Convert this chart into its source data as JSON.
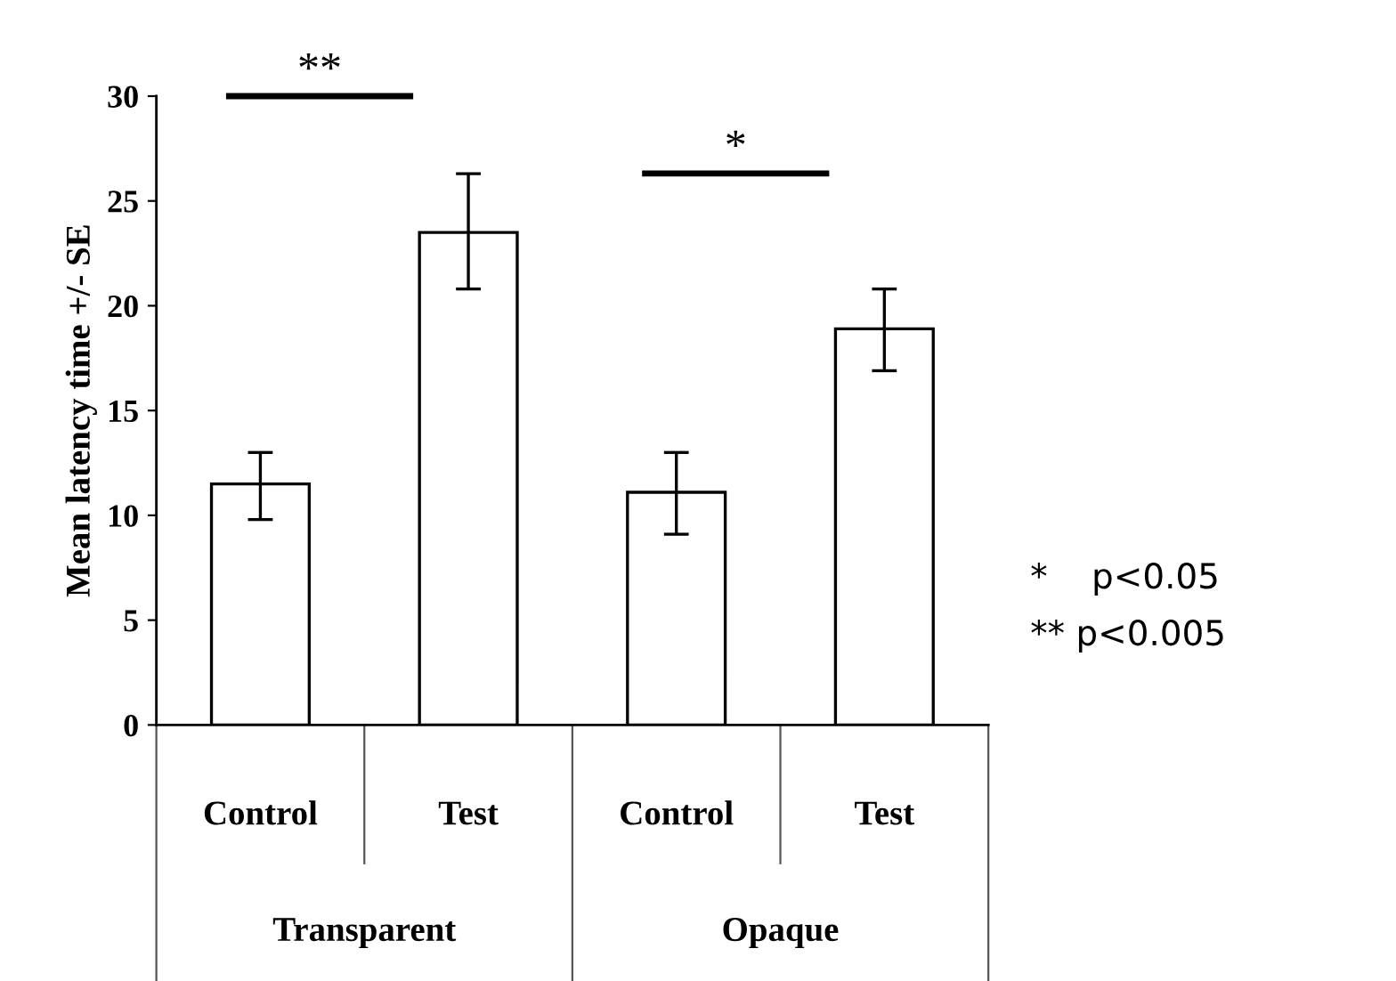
{
  "chart_data": {
    "type": "bar",
    "ylabel": "Mean latency time +/- SE",
    "categories": [
      "Control",
      "Test",
      "Control",
      "Test"
    ],
    "values": [
      11.5,
      23.5,
      11.1,
      18.9
    ],
    "errors": [
      [
        9.8,
        13.0
      ],
      [
        20.8,
        26.3
      ],
      [
        9.1,
        13.0
      ],
      [
        16.9,
        20.8
      ]
    ],
    "color": "#ffffff",
    "ylim": [
      0,
      30
    ],
    "yticks": [
      0,
      5,
      10,
      15,
      20,
      25,
      30
    ],
    "grid": false,
    "annotations": [
      "**",
      "*",
      "Transparent",
      "Opaque",
      "*    p<0.05",
      "** p<0.005"
    ]
  }
}
